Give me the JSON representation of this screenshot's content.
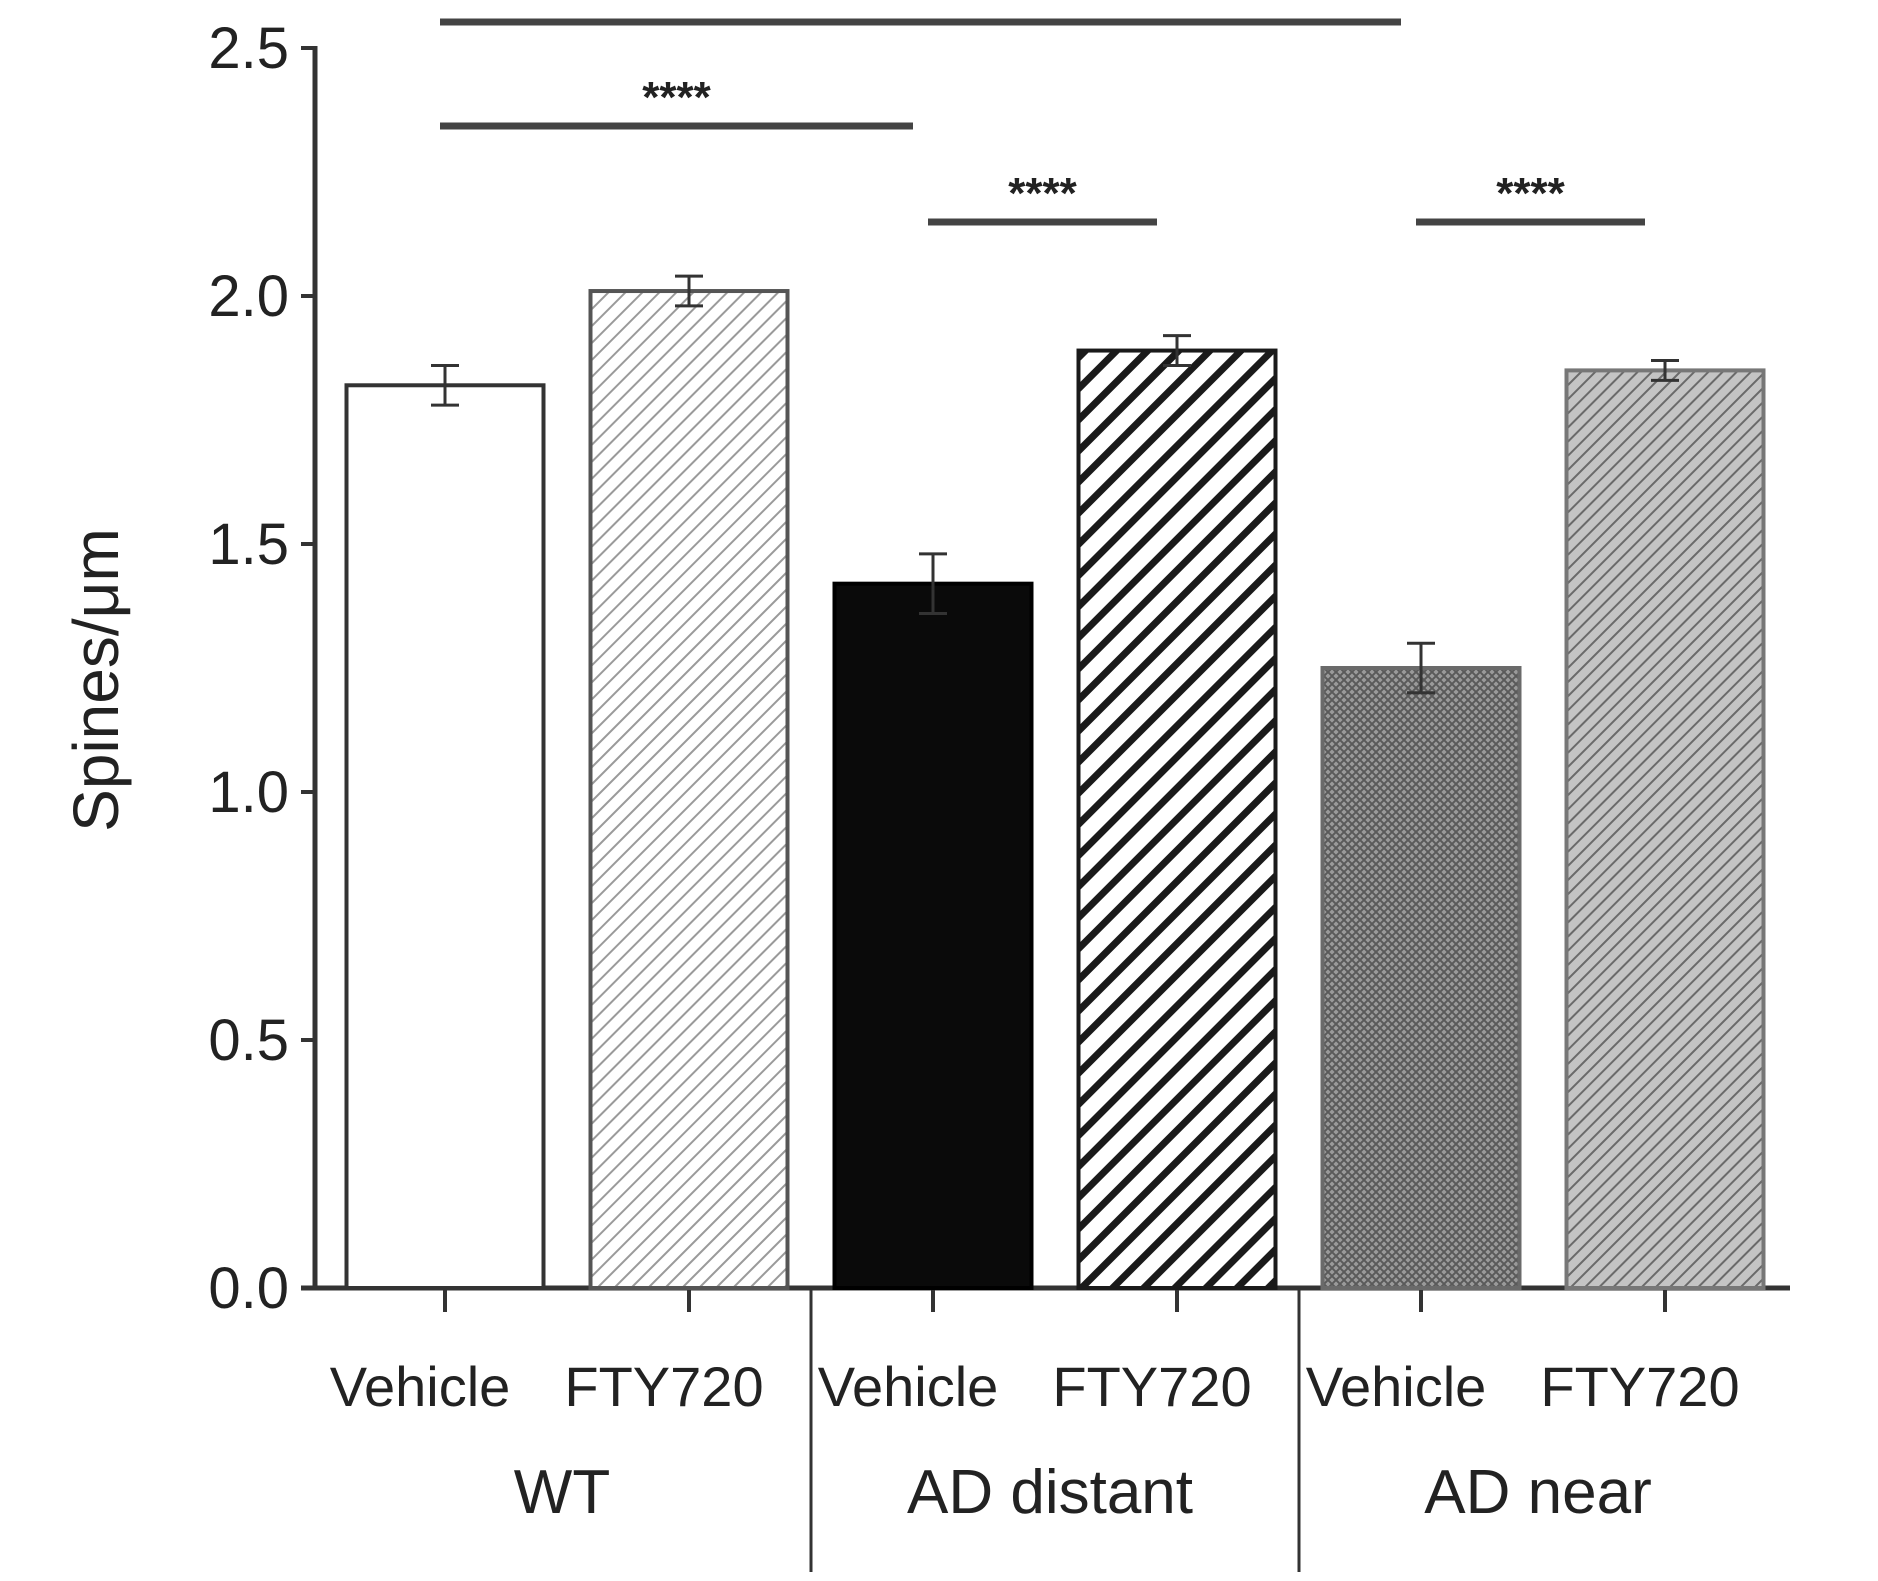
{
  "chart_data": {
    "type": "bar",
    "title": "",
    "xlabel": "",
    "ylabel": "Spines/μm",
    "ylim": [
      0,
      2.5
    ],
    "yticks": [
      "0.0",
      "0.5",
      "1.0",
      "1.5",
      "2.0",
      "2.5"
    ],
    "grid": false,
    "groups": [
      {
        "name": "WT",
        "bars": [
          {
            "label": "Vehicle",
            "value": 1.82,
            "error": 0.04,
            "fill": "white"
          },
          {
            "label": "FTY720",
            "value": 2.01,
            "error": 0.03,
            "fill": "light-hatch"
          }
        ]
      },
      {
        "name": "AD distant",
        "bars": [
          {
            "label": "Vehicle",
            "value": 1.42,
            "error": 0.06,
            "fill": "black"
          },
          {
            "label": "FTY720",
            "value": 1.89,
            "error": 0.03,
            "fill": "dark-hatch"
          }
        ]
      },
      {
        "name": "AD near",
        "bars": [
          {
            "label": "Vehicle",
            "value": 1.25,
            "error": 0.05,
            "fill": "gray-crosshatch"
          },
          {
            "label": "FTY720",
            "value": 1.85,
            "error": 0.02,
            "fill": "gray-hatch"
          }
        ]
      }
    ],
    "significance": [
      {
        "label": "",
        "from": 0,
        "to": 4
      },
      {
        "label": "****",
        "from": 0,
        "to": 2
      },
      {
        "label": "****",
        "from": 2,
        "to": 3
      },
      {
        "label": "****",
        "from": 4,
        "to": 5
      }
    ],
    "colors": {
      "axis": "#333333",
      "black_bar": "#0a0a0a",
      "gray_bar": "#888888",
      "hatch_light": "#9a9a9a",
      "hatch_dark": "#1a1a1a"
    }
  }
}
